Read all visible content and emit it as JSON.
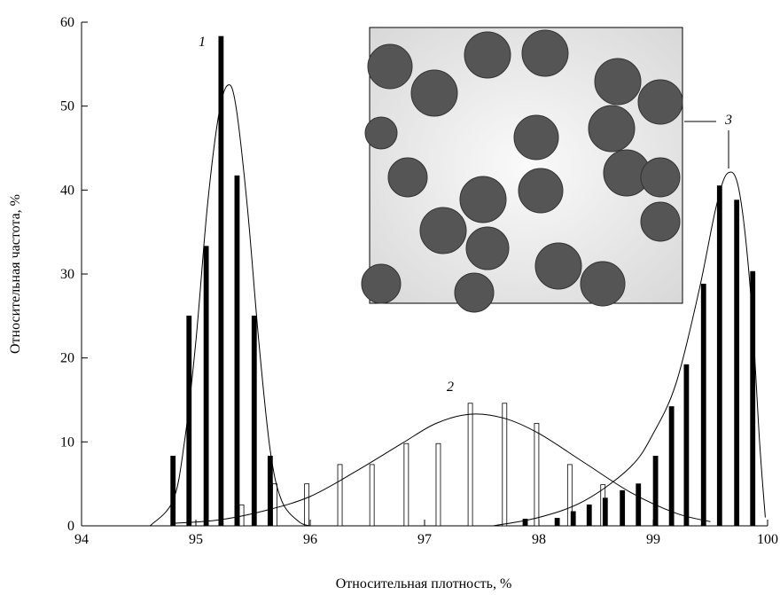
{
  "chart_data": {
    "type": "bar",
    "xlabel": "Относительная плотность, %",
    "ylabel": "Относительная частота, %",
    "xlim": [
      94,
      100
    ],
    "xticks": [
      94,
      95,
      96,
      97,
      98,
      99,
      100
    ],
    "ylim": [
      0,
      60
    ],
    "yticks": [
      0,
      10,
      20,
      30,
      40,
      50,
      60
    ],
    "annotations": [
      "1",
      "2",
      "3"
    ],
    "series": [
      {
        "kind": "bar",
        "color": "#000000",
        "x": [
          94.8,
          94.94,
          95.09,
          95.22,
          95.36,
          95.51,
          95.65
        ],
        "values": [
          8.3,
          25,
          33.3,
          58.3,
          41.7,
          25,
          8.3
        ]
      },
      {
        "kind": "bar",
        "color": "#ffffff",
        "x": [
          95.4,
          95.69,
          95.97,
          96.26,
          96.54,
          96.84,
          97.12,
          97.4,
          97.7,
          97.98,
          98.27,
          98.56
        ],
        "values": [
          2.5,
          5,
          5,
          7.3,
          7.3,
          9.8,
          9.8,
          14.6,
          14.6,
          12.2,
          7.3,
          4.9
        ]
      },
      {
        "kind": "bar",
        "color": "#000000",
        "x": [
          97.88,
          98.16,
          98.3,
          98.44,
          98.58,
          98.73,
          98.87,
          99.02,
          99.16,
          99.29,
          99.44,
          99.58,
          99.73,
          99.87
        ],
        "values": [
          0.8,
          0.9,
          1.7,
          2.5,
          3.3,
          4.2,
          5,
          8.3,
          14.2,
          19.2,
          28.8,
          40.5,
          38.8,
          30.3
        ]
      },
      {
        "kind": "line",
        "color": "#000000",
        "x": [
          94.6,
          94.8,
          94.9,
          95.0,
          95.1,
          95.2,
          95.28,
          95.35,
          95.45,
          95.55,
          95.65,
          95.75,
          95.9,
          96.0
        ],
        "values": [
          0,
          3,
          10,
          22,
          38,
          49,
          52.5,
          50,
          38,
          22,
          9,
          3,
          0.5,
          0
        ]
      },
      {
        "kind": "line",
        "color": "#000000",
        "x": [
          94.8,
          95.2,
          95.6,
          96.0,
          96.4,
          96.8,
          97.1,
          97.4,
          97.7,
          98.0,
          98.4,
          98.8,
          99.2,
          99.5
        ],
        "values": [
          0.3,
          0.7,
          1.8,
          3.5,
          6.5,
          9.8,
          12.2,
          13.3,
          12.8,
          11,
          7.5,
          4,
          1.5,
          0.5
        ]
      },
      {
        "kind": "line",
        "color": "#000000",
        "x": [
          97.6,
          98.0,
          98.4,
          98.8,
          99.0,
          99.2,
          99.4,
          99.55,
          99.65,
          99.75,
          99.85,
          99.93,
          99.98
        ],
        "values": [
          0,
          1,
          3,
          7,
          11,
          17,
          28,
          38,
          42,
          40,
          28,
          10,
          1
        ]
      }
    ]
  }
}
